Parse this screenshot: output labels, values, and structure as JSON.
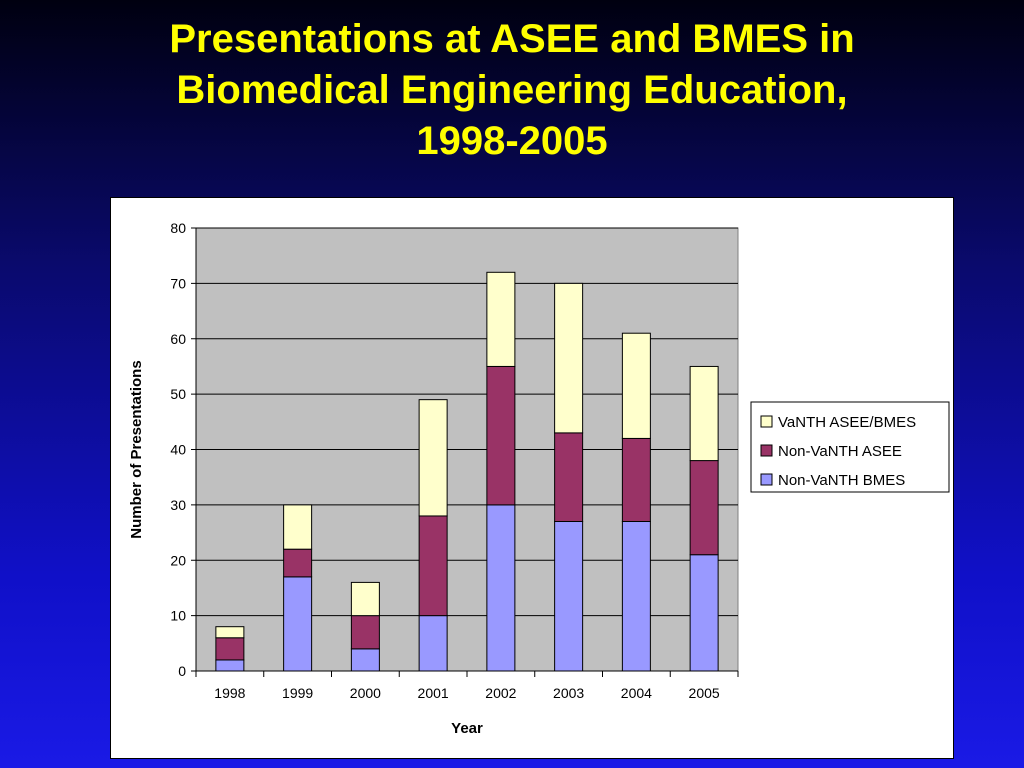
{
  "slide": {
    "title_lines": [
      "Presentations at ASEE and BMES in",
      "Biomedical Engineering Education,",
      "1998-2005"
    ]
  },
  "chart_data": {
    "type": "bar",
    "stacked": true,
    "categories": [
      "1998",
      "1999",
      "2000",
      "2001",
      "2002",
      "2003",
      "2004",
      "2005"
    ],
    "series": [
      {
        "name": "Non-VaNTH BMES",
        "color": "#9999ff",
        "values": [
          2,
          17,
          4,
          10,
          30,
          27,
          27,
          21
        ]
      },
      {
        "name": "Non-VaNTH ASEE",
        "color": "#993366",
        "values": [
          4,
          5,
          6,
          18,
          25,
          16,
          15,
          17
        ]
      },
      {
        "name": "VaNTH ASEE/BMES",
        "color": "#ffffcc",
        "values": [
          2,
          8,
          6,
          21,
          17,
          27,
          19,
          17
        ]
      }
    ],
    "xlabel": "Year",
    "ylabel": "Number of Presentations",
    "ylim": [
      0,
      80
    ],
    "yticks": [
      0,
      10,
      20,
      30,
      40,
      50,
      60,
      70,
      80
    ],
    "grid": true,
    "plot_background": "#c0c0c0",
    "legend": {
      "placement": "right",
      "order": [
        "VaNTH ASEE/BMES",
        "Non-VaNTH ASEE",
        "Non-VaNTH BMES"
      ]
    }
  }
}
